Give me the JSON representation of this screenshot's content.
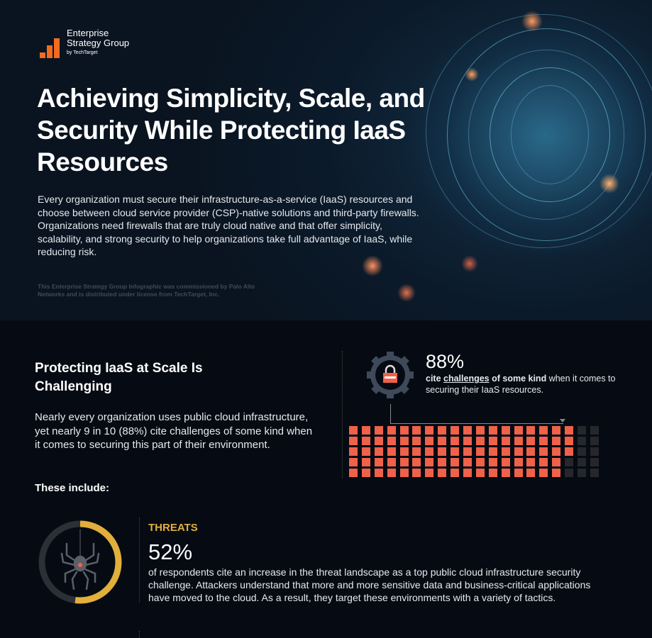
{
  "brand": {
    "name_line1": "Enterprise",
    "name_line2": "Strategy Group",
    "by": "by TechTarget",
    "accent": "#f26b21"
  },
  "hero": {
    "title": "Achieving Simplicity, Scale, and Security While Protecting IaaS Resources",
    "intro": "Every organization must secure their infrastructure-as-a-service (IaaS) resources and choose between cloud service provider (CSP)-native solutions and third-party firewalls. Organizations need firewalls that are truly cloud native and that offer simplicity, scalability, and strong security to help organizations take full advantage of IaaS, while reducing risk.",
    "license": "This Enterprise Strategy Group Infographic was commissioned by Palo Alto Networks and is distributed under license from TechTarget, Inc."
  },
  "section": {
    "title": "Protecting IaaS at Scale Is Challenging",
    "body": "Nearly every organization uses public cloud infrastructure, yet nearly 9 in 10 (88%) cite challenges of some kind when it comes to securing this part of their environment.",
    "these_include": "These include:"
  },
  "stat88": {
    "percent": "88%",
    "value": 88,
    "total": 100,
    "desc_pre": "cite ",
    "desc_link": "challenges",
    "desc_bold": " of some kind",
    "desc_rest": " when it comes to securing their IaaS resources.",
    "icon": "lock-gear-icon",
    "filled_color": "#f0614a",
    "empty_color": "#25272c"
  },
  "threats": {
    "label": "THREATS",
    "percent": "52%",
    "value": 52,
    "icon": "spider-icon",
    "ring_color": "#e2ae3c",
    "track_color": "#2c2f36",
    "desc": "of respondents cite an increase in the threat landscape as a top public cloud infrastructure security challenge. Attackers understand that more and more sensitive data and business-critical applications have moved to the cloud. As a result, they target these environments with a variety of tactics."
  }
}
